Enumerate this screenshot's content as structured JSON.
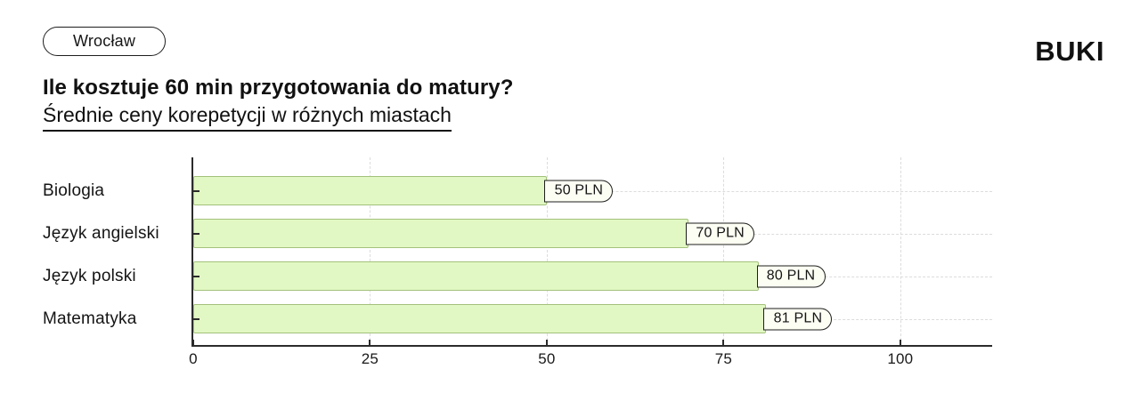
{
  "header": {
    "city_badge": "Wrocław",
    "brand": "BUKI",
    "title": "Ile kosztuje 60 min przygotowania do matury?",
    "subtitle": "Średnie ceny korepetycji w różnych miastach"
  },
  "chart_data": {
    "type": "bar",
    "orientation": "horizontal",
    "title": "Ile kosztuje 60 min przygotowania do matury?",
    "subtitle": "Średnie ceny korepetycji w różnych miastach",
    "categories": [
      "Biologia",
      "Język angielski",
      "Język polski",
      "Matematyka"
    ],
    "values": [
      50,
      70,
      80,
      81
    ],
    "bar_labels": [
      "50 PLN",
      "70 PLN",
      "80 PLN",
      "81 PLN"
    ],
    "unit": "PLN",
    "xlabel": "",
    "ylabel": "",
    "xticks": [
      0,
      25,
      50,
      75,
      100
    ],
    "xlim": [
      0,
      113
    ],
    "grid": true,
    "legend": false,
    "colors": {
      "bar_fill": "#e2f8c4",
      "bar_border": "#a3c17b",
      "pill_bg": "#fcfef3",
      "pill_border": "#1e1e1e",
      "axis": "#2b2b2b",
      "gridline": "#dcdcdc",
      "text": "#141414"
    }
  }
}
